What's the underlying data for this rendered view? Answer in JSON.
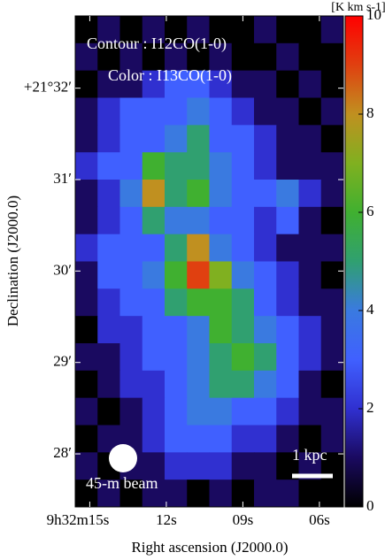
{
  "chart_data": {
    "type": "heatmap",
    "xlabel": "Right ascension (J2000.0)",
    "ylabel": "Declination (J2000.0)",
    "xlim": [
      15.57,
      5.06
    ],
    "xticks": [
      {
        "value": 15,
        "label": "9h32m15s"
      },
      {
        "value": 12,
        "label": "12s"
      },
      {
        "value": 9,
        "label": "09s"
      },
      {
        "value": 6,
        "label": "06s"
      }
    ],
    "ylim": [
      27.42,
      32.79
    ],
    "yticks": [
      {
        "value": 32,
        "label": "+21°32′"
      },
      {
        "value": 31,
        "label": "31′"
      },
      {
        "value": 30,
        "label": "30′"
      },
      {
        "value": 29,
        "label": "29′"
      },
      {
        "value": 28,
        "label": "28′"
      }
    ],
    "colorbar_label": "[K km s-1]",
    "clim": [
      0,
      10
    ],
    "cticks": [
      0,
      2,
      4,
      6,
      8,
      10
    ],
    "colorscale": [
      "#000000",
      "#1a0a60",
      "#3030d0",
      "#4060ff",
      "#3a7ae0",
      "#30a070",
      "#40b030",
      "#80b020",
      "#c09020",
      "#e04010",
      "#ff0000"
    ],
    "annotations": [
      "Contour : I12CO(1-0)",
      "Color : I13CO(1-0)",
      "45-m beam",
      "1 kpc"
    ],
    "z": [
      [
        0,
        1,
        0,
        1,
        0,
        1,
        0,
        0,
        1,
        0,
        0,
        1
      ],
      [
        1,
        0,
        1,
        0,
        1,
        0,
        1,
        0,
        0,
        1,
        0,
        0
      ],
      [
        0,
        1,
        1,
        2,
        3,
        3,
        2,
        1,
        1,
        0,
        1,
        0
      ],
      [
        1,
        2,
        3,
        3,
        3,
        4,
        3,
        2,
        1,
        1,
        0,
        1
      ],
      [
        1,
        2,
        3,
        3,
        4,
        5,
        3,
        3,
        2,
        1,
        1,
        0
      ],
      [
        2,
        3,
        3,
        6,
        5,
        5,
        4,
        3,
        2,
        1,
        1,
        1
      ],
      [
        1,
        2,
        4,
        8,
        5,
        6,
        4,
        3,
        3,
        4,
        2,
        1
      ],
      [
        1,
        2,
        3,
        5,
        4,
        4,
        3,
        3,
        2,
        3,
        1,
        0
      ],
      [
        2,
        3,
        3,
        3,
        5,
        8,
        4,
        3,
        2,
        1,
        1,
        1
      ],
      [
        1,
        3,
        3,
        4,
        6,
        9,
        7,
        4,
        3,
        2,
        1,
        0
      ],
      [
        1,
        2,
        3,
        3,
        5,
        6,
        6,
        5,
        3,
        2,
        1,
        1
      ],
      [
        0,
        2,
        2,
        3,
        3,
        4,
        6,
        5,
        4,
        3,
        2,
        1
      ],
      [
        1,
        1,
        2,
        3,
        3,
        4,
        5,
        6,
        5,
        3,
        2,
        1
      ],
      [
        0,
        1,
        2,
        2,
        3,
        4,
        5,
        5,
        4,
        3,
        1,
        0
      ],
      [
        1,
        0,
        1,
        2,
        3,
        4,
        4,
        3,
        3,
        2,
        1,
        1
      ],
      [
        0,
        1,
        1,
        2,
        3,
        3,
        3,
        2,
        2,
        1,
        0,
        1
      ],
      [
        1,
        0,
        1,
        1,
        2,
        2,
        2,
        1,
        1,
        0,
        1,
        0
      ],
      [
        0,
        1,
        0,
        1,
        1,
        0,
        1,
        0,
        1,
        1,
        0,
        0
      ]
    ]
  }
}
